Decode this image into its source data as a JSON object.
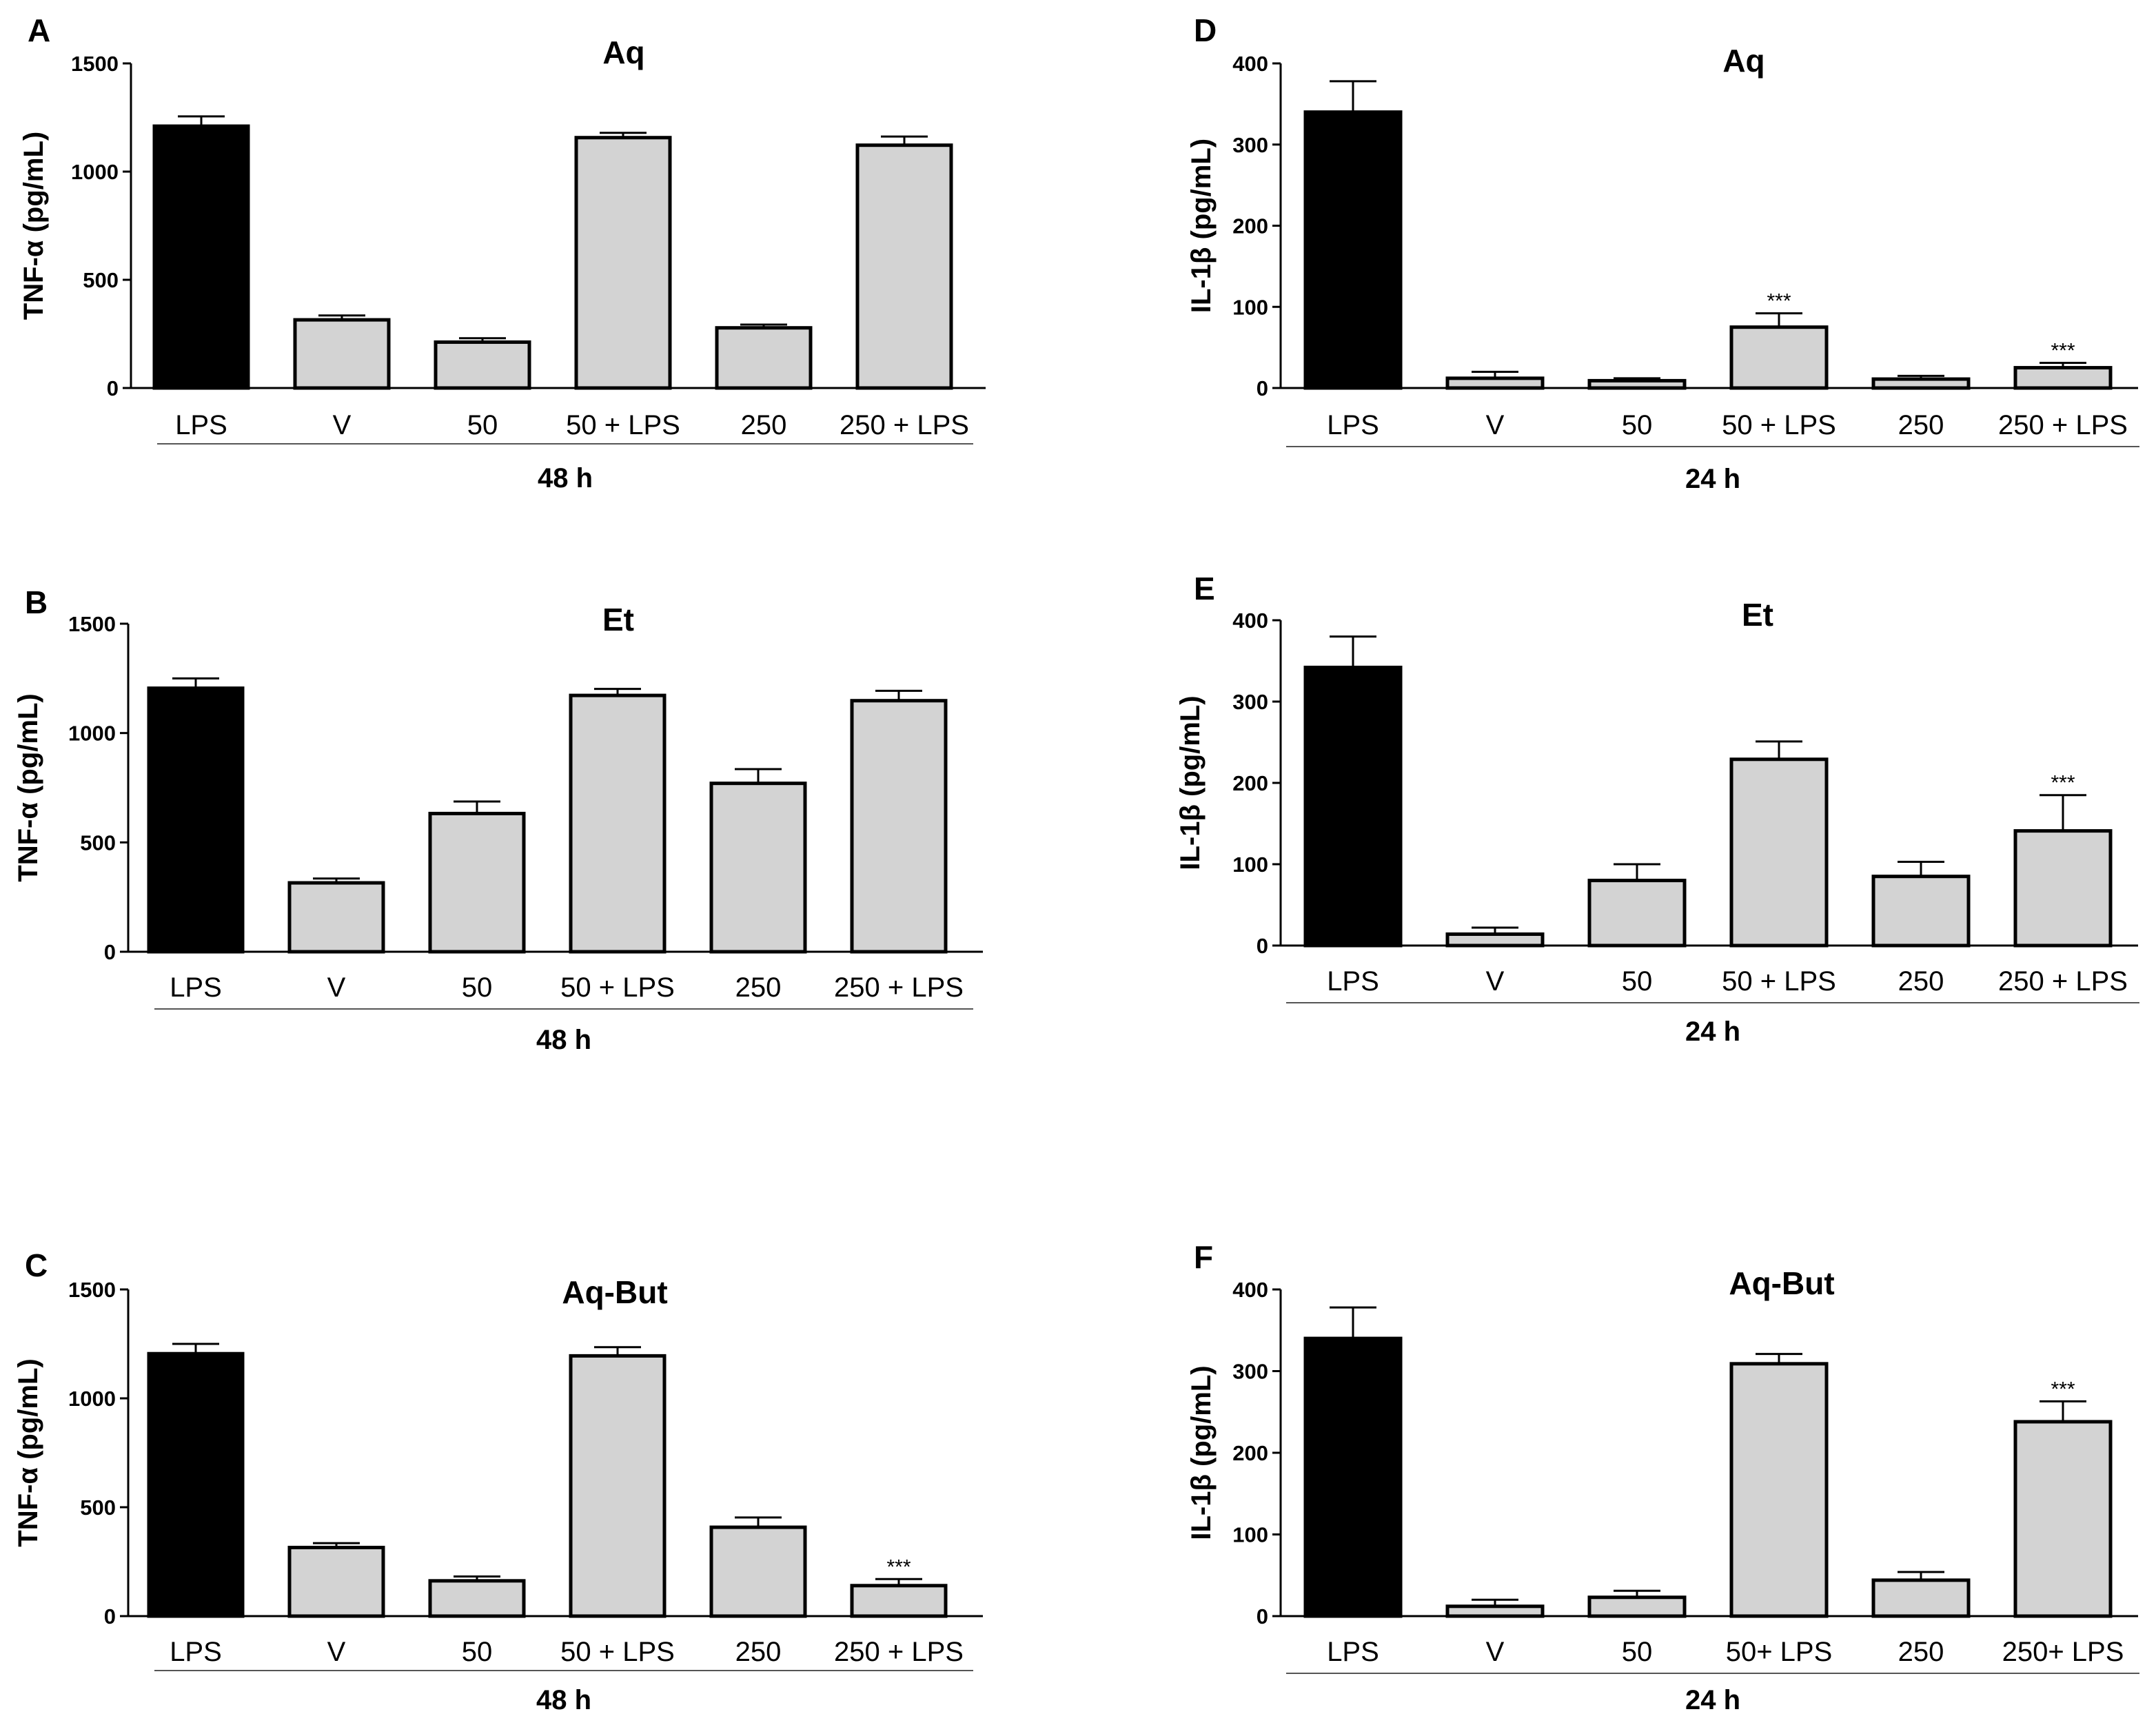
{
  "chart_data": [
    {
      "panel": "A",
      "type": "bar",
      "title": "Aq",
      "ylabel": "TNF-α (pg/mL)",
      "xlabel": "48 h",
      "ylim": [
        0,
        1500
      ],
      "yticks": [
        0,
        500,
        1000,
        1500
      ],
      "categories": [
        "LPS",
        "V",
        "50",
        "50 + LPS",
        "250",
        "250 + LPS"
      ],
      "values": [
        1210,
        315,
        212,
        1157,
        278,
        1122
      ],
      "errors": [
        45,
        20,
        18,
        22,
        15,
        40
      ],
      "annotations": [
        "",
        "",
        "",
        "",
        "",
        ""
      ],
      "colors": [
        "#000000",
        "#d3d3d3",
        "#d3d3d3",
        "#d3d3d3",
        "#d3d3d3",
        "#d3d3d3"
      ]
    },
    {
      "panel": "B",
      "type": "bar",
      "title": "Et",
      "ylabel": "TNF-α (pg/mL)",
      "xlabel": "48 h",
      "ylim": [
        0,
        1500
      ],
      "yticks": [
        0,
        500,
        1000,
        1500
      ],
      "categories": [
        "LPS",
        "V",
        "50",
        "50 + LPS",
        "250",
        "250 + LPS"
      ],
      "values": [
        1205,
        315,
        632,
        1172,
        770,
        1148
      ],
      "errors": [
        45,
        20,
        55,
        30,
        65,
        45
      ],
      "annotations": [
        "",
        "",
        "",
        "",
        "",
        ""
      ],
      "colors": [
        "#000000",
        "#d3d3d3",
        "#d3d3d3",
        "#d3d3d3",
        "#d3d3d3",
        "#d3d3d3"
      ]
    },
    {
      "panel": "C",
      "type": "bar",
      "title": "Aq-But",
      "ylabel": "TNF-α (pg/mL)",
      "xlabel": "48 h",
      "ylim": [
        0,
        1500
      ],
      "yticks": [
        0,
        500,
        1000,
        1500
      ],
      "categories": [
        "LPS",
        "V",
        "50",
        "50 + LPS",
        "250",
        "250 + LPS"
      ],
      "values": [
        1205,
        315,
        162,
        1195,
        408,
        140
      ],
      "errors": [
        45,
        20,
        20,
        40,
        45,
        30
      ],
      "annotations": [
        "",
        "",
        "",
        "",
        "",
        "***"
      ],
      "colors": [
        "#000000",
        "#d3d3d3",
        "#d3d3d3",
        "#d3d3d3",
        "#d3d3d3",
        "#d3d3d3"
      ]
    },
    {
      "panel": "D",
      "type": "bar",
      "title": "Aq",
      "ylabel": "IL-1β (pg/mL)",
      "xlabel": "24 h",
      "ylim": [
        0,
        400
      ],
      "yticks": [
        0,
        100,
        200,
        300,
        400
      ],
      "categories": [
        "LPS",
        "V",
        "50",
        "50 + LPS",
        "250",
        "250 + LPS"
      ],
      "values": [
        340,
        12,
        9,
        75,
        11,
        25
      ],
      "errors": [
        38,
        8,
        3,
        17,
        4,
        6
      ],
      "annotations": [
        "",
        "",
        "",
        "***",
        "",
        "***"
      ],
      "colors": [
        "#000000",
        "#d3d3d3",
        "#d3d3d3",
        "#d3d3d3",
        "#d3d3d3",
        "#d3d3d3"
      ]
    },
    {
      "panel": "E",
      "type": "bar",
      "title": "Et",
      "ylabel": "IL-1β (pg/mL)",
      "xlabel": "24 h",
      "ylim": [
        0,
        400
      ],
      "yticks": [
        0,
        100,
        200,
        300,
        400
      ],
      "categories": [
        "LPS",
        "V",
        "50",
        "50 + LPS",
        "250",
        "250 + LPS"
      ],
      "values": [
        342,
        14,
        80,
        229,
        85,
        141
      ],
      "errors": [
        38,
        8,
        20,
        22,
        18,
        44
      ],
      "annotations": [
        "",
        "",
        "",
        "",
        "",
        "***"
      ],
      "colors": [
        "#000000",
        "#d3d3d3",
        "#d3d3d3",
        "#d3d3d3",
        "#d3d3d3",
        "#d3d3d3"
      ]
    },
    {
      "panel": "F",
      "type": "bar",
      "title": "Aq-But",
      "ylabel": "IL-1β (pg/mL)",
      "xlabel": "24 h",
      "ylim": [
        0,
        400
      ],
      "yticks": [
        0,
        100,
        200,
        300,
        400
      ],
      "categories": [
        "LPS",
        "V",
        "50",
        "50+ LPS",
        "250",
        "250+ LPS"
      ],
      "values": [
        340,
        12,
        23,
        309,
        44,
        238
      ],
      "errors": [
        38,
        8,
        8,
        12,
        10,
        25
      ],
      "annotations": [
        "",
        "",
        "",
        "",
        "",
        "***"
      ],
      "colors": [
        "#000000",
        "#d3d3d3",
        "#d3d3d3",
        "#d3d3d3",
        "#d3d3d3",
        "#d3d3d3"
      ]
    }
  ]
}
